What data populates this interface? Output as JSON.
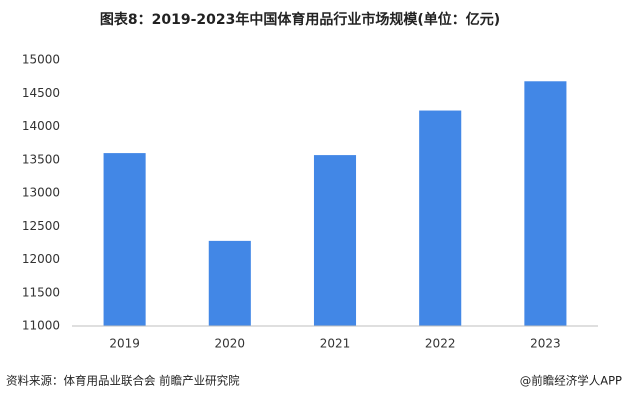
{
  "chart_data": {
    "type": "bar",
    "title": "图表8：2019-2023年中国体育用品行业市场规模(单位：亿元)",
    "categories": [
      "2019",
      "2020",
      "2021",
      "2022",
      "2023"
    ],
    "values": [
      13600,
      12280,
      13570,
      14240,
      14680
    ],
    "color": "#4287e6",
    "ylim": [
      11000,
      15000
    ],
    "yticks": [
      11000,
      11500,
      12000,
      12500,
      13000,
      13500,
      14000,
      14500,
      15000
    ],
    "grid": false,
    "source": "资料来源：体育用品业联合会 前瞻产业研究院",
    "credit": "@前瞻经济学人APP"
  }
}
